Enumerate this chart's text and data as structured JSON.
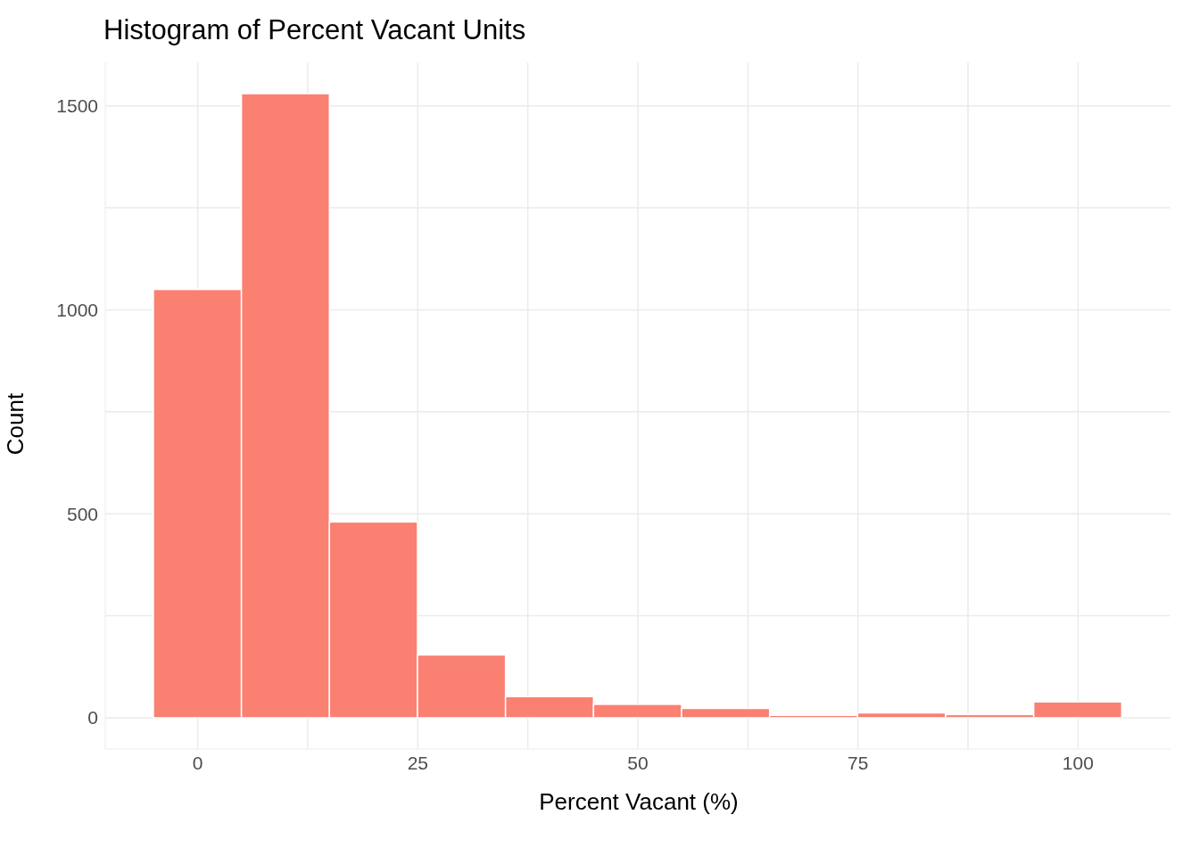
{
  "chart_data": {
    "type": "histogram",
    "title": "Histogram of Percent Vacant Units",
    "xlabel": "Percent Vacant (%)",
    "ylabel": "Count",
    "bins": [
      -5,
      5,
      15,
      25,
      35,
      45,
      55,
      65,
      75,
      85,
      95,
      105
    ],
    "values": [
      1050,
      1530,
      480,
      154,
      52,
      33,
      23,
      6,
      12,
      8,
      39
    ],
    "color": "#fa8072",
    "xlim": [
      -10.5,
      110.5
    ],
    "ylim": [
      -76.5,
      1606.5
    ],
    "xticks": [
      0,
      {
        "value": 12.5,
        "label": null
      },
      25,
      {
        "value": 37.5,
        "label": null
      },
      50,
      {
        "value": 62.5,
        "label": null
      },
      75,
      {
        "value": 87.5,
        "label": null
      },
      100
    ],
    "yticks": [
      0,
      {
        "value": 250,
        "label": null
      },
      500,
      {
        "value": 750,
        "label": null
      },
      1000,
      {
        "value": 1250,
        "label": null
      },
      1500
    ],
    "grid": true
  }
}
